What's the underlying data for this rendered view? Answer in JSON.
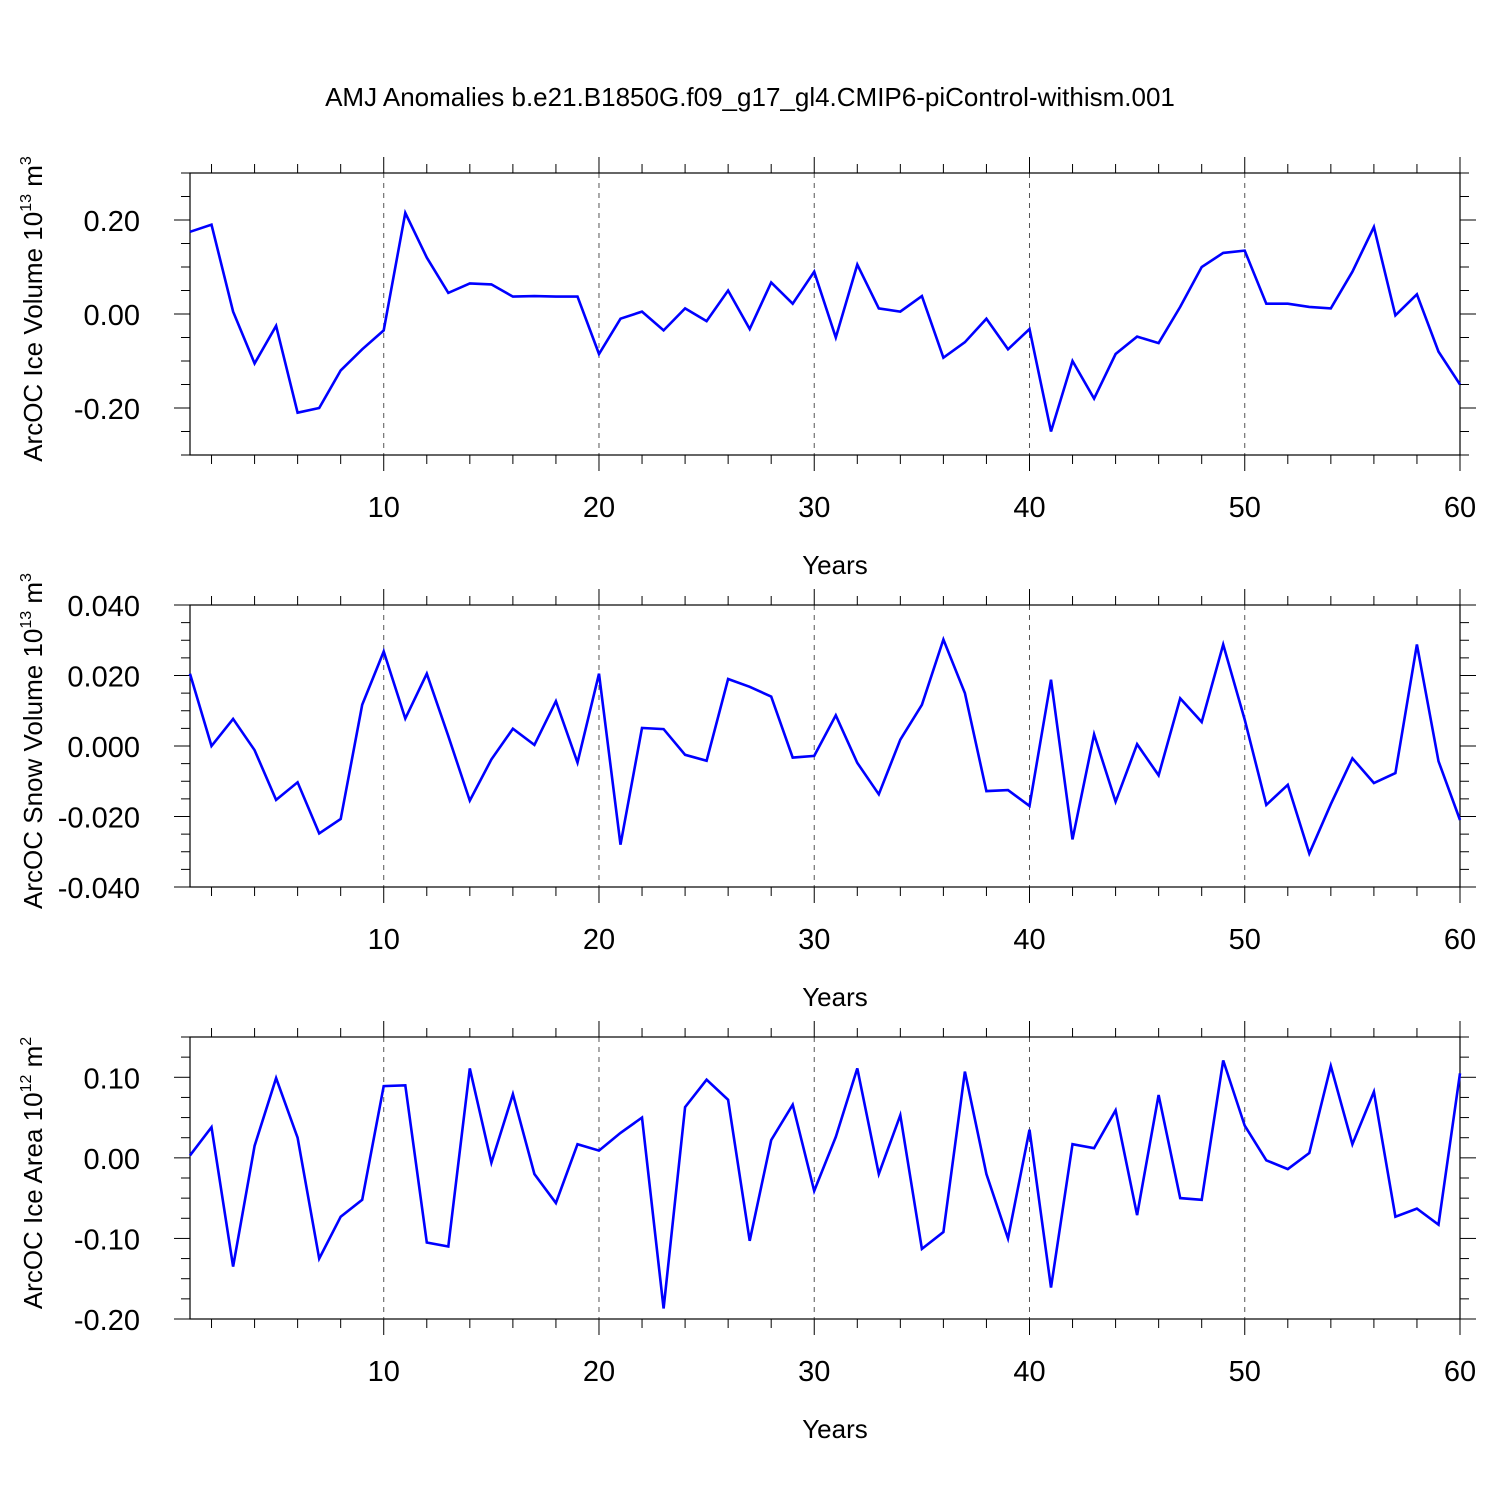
{
  "title": "AMJ Anomalies b.e21.B1850G.f09_g17_gl4.CMIP6-piControl-withism.001",
  "chart_data": [
    {
      "type": "line",
      "title": "AMJ Anomalies b.e21.B1850G.f09_g17_gl4.CMIP6-piControl-withism.001",
      "xlabel": "Years",
      "ylabel": {
        "prefix": "ArcOC Ice Volume 10",
        "exp": "13",
        "unit": " m",
        "unit_exp": "3"
      },
      "xlim": [
        1,
        60
      ],
      "ylim": [
        -0.3,
        0.3
      ],
      "xticks": [
        10,
        20,
        30,
        40,
        50,
        60
      ],
      "xtick_labels": [
        "10",
        "20",
        "30",
        "40",
        "50",
        "60"
      ],
      "yticks": [
        0.2,
        0.0,
        -0.2
      ],
      "ytick_labels": [
        "0.20",
        "0.00",
        "-0.20"
      ],
      "y_minor_step": 0.05,
      "grid": "vertical dashed at major x ticks",
      "color": "#0000ff",
      "series": [
        {
          "name": "Ice Volume",
          "x_start": 1,
          "values": [
            0.175,
            0.19,
            0.005,
            -0.105,
            -0.025,
            -0.21,
            -0.2,
            -0.12,
            -0.075,
            -0.035,
            0.215,
            0.12,
            0.045,
            0.065,
            0.063,
            0.037,
            0.038,
            0.037,
            0.037,
            -0.085,
            -0.01,
            0.005,
            -0.035,
            0.012,
            -0.015,
            0.05,
            -0.032,
            0.067,
            0.022,
            0.09,
            -0.05,
            0.105,
            0.012,
            0.005,
            0.038,
            -0.093,
            -0.06,
            -0.01,
            -0.075,
            -0.032,
            -0.25,
            -0.1,
            -0.18,
            -0.085,
            -0.048,
            -0.062,
            0.015,
            0.1,
            0.13,
            0.135,
            0.022,
            0.022,
            0.015,
            0.012,
            0.09,
            0.185,
            -0.003,
            0.042,
            -0.08,
            -0.15
          ]
        }
      ]
    },
    {
      "type": "line",
      "xlabel": "Years",
      "ylabel": {
        "prefix": "ArcOC Snow Volume 10",
        "exp": "13",
        "unit": " m",
        "unit_exp": "3"
      },
      "xlim": [
        1,
        60
      ],
      "ylim": [
        -0.04,
        0.04
      ],
      "xticks": [
        10,
        20,
        30,
        40,
        50,
        60
      ],
      "xtick_labels": [
        "10",
        "20",
        "30",
        "40",
        "50",
        "60"
      ],
      "yticks": [
        0.04,
        0.02,
        0.0,
        -0.02,
        -0.04
      ],
      "ytick_labels": [
        "0.040",
        "0.020",
        "0.000",
        "-0.020",
        "-0.040"
      ],
      "y_minor_step": 0.005,
      "grid": "vertical dashed at major x ticks",
      "color": "#0000ff",
      "series": [
        {
          "name": "Snow Volume",
          "x_start": 1,
          "values": [
            0.0205,
            0.0,
            0.0077,
            -0.0012,
            -0.0153,
            -0.0103,
            -0.0248,
            -0.0207,
            0.0117,
            0.0268,
            0.0078,
            0.0205,
            0.0028,
            -0.0155,
            -0.0038,
            0.0049,
            0.0003,
            0.0127,
            -0.0047,
            0.0205,
            -0.028,
            0.0051,
            0.0048,
            -0.0025,
            -0.0042,
            0.019,
            0.0168,
            0.014,
            -0.0033,
            -0.0028,
            0.0087,
            -0.0048,
            -0.0137,
            0.0018,
            0.0117,
            0.0302,
            0.015,
            -0.0128,
            -0.0125,
            -0.017,
            0.0188,
            -0.0265,
            0.0033,
            -0.0158,
            0.0005,
            -0.0083,
            0.0135,
            0.0068,
            0.0288,
            0.0075,
            -0.0167,
            -0.011,
            -0.0305,
            -0.0165,
            -0.0035,
            -0.0105,
            -0.0077,
            0.0288,
            -0.0043,
            -0.021
          ]
        }
      ]
    },
    {
      "type": "line",
      "xlabel": "Years",
      "ylabel": {
        "prefix": "ArcOC Ice Area 10",
        "exp": "12",
        "unit": " m",
        "unit_exp": "2"
      },
      "xlim": [
        1,
        60
      ],
      "ylim": [
        -0.2,
        0.15
      ],
      "xticks": [
        10,
        20,
        30,
        40,
        50,
        60
      ],
      "xtick_labels": [
        "10",
        "20",
        "30",
        "40",
        "50",
        "60"
      ],
      "yticks": [
        0.1,
        0.0,
        -0.1,
        -0.2
      ],
      "ytick_labels": [
        "0.10",
        "0.00",
        "-0.10",
        "-0.20"
      ],
      "y_minor_step": 0.025,
      "grid": "vertical dashed at major x ticks",
      "color": "#0000ff",
      "series": [
        {
          "name": "Ice Area",
          "x_start": 1,
          "values": [
            0.003,
            0.038,
            -0.135,
            0.015,
            0.099,
            0.025,
            -0.125,
            -0.073,
            -0.052,
            0.089,
            0.09,
            -0.105,
            -0.11,
            0.111,
            -0.006,
            0.079,
            -0.02,
            -0.056,
            0.017,
            0.009,
            0.031,
            0.05,
            -0.187,
            0.063,
            0.097,
            0.072,
            -0.103,
            0.022,
            0.066,
            -0.041,
            0.026,
            0.111,
            -0.02,
            0.053,
            -0.113,
            -0.092,
            0.107,
            -0.02,
            -0.1,
            0.035,
            -0.161,
            0.017,
            0.012,
            0.059,
            -0.071,
            0.078,
            -0.05,
            -0.052,
            0.121,
            0.04,
            -0.003,
            -0.014,
            0.006,
            0.114,
            0.017,
            0.082,
            -0.073,
            -0.063,
            -0.083,
            0.105
          ]
        }
      ]
    }
  ]
}
